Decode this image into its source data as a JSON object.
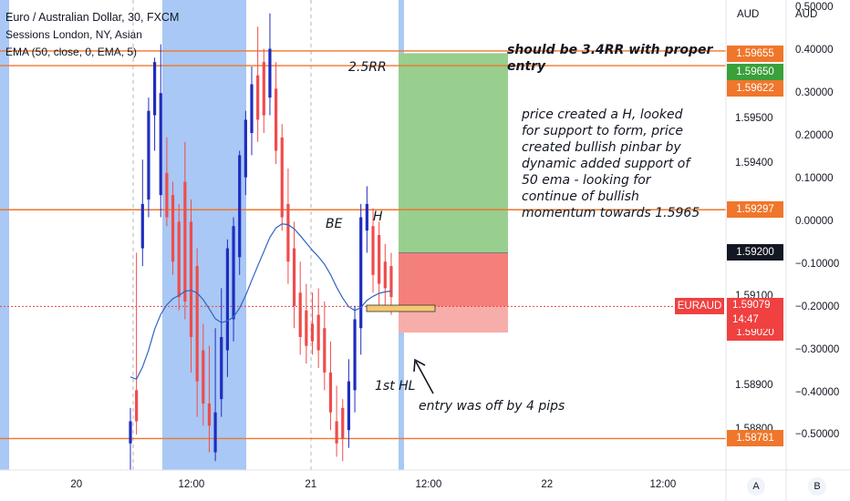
{
  "legend": {
    "title": "Euro / Australian Dollar, 30, FXCM",
    "line2": "Sessions London, NY, Asian",
    "line3": "EMA (50, close, 0, EMA, 5)"
  },
  "annotations": {
    "rr": "2.5RR",
    "be": "BE",
    "h": "H",
    "hl": "1st HL",
    "entry_off": "entry was off by 4 pips",
    "should_be": "should be 3.4RR with proper entry",
    "analysis": "price created a H, looked for support to form, price created bullish pinbar by dynamic added support of 50 ema - looking for continue of bullish momentum towards 1.5965"
  },
  "axis": {
    "left_unit": "AUD",
    "right_unit": "AUD",
    "btn_a": "A",
    "btn_b": "B"
  },
  "price_ticks": [
    "1.59600",
    "1.59500",
    "1.59400",
    "1.59100",
    "1.58900",
    "1.58800"
  ],
  "pct_ticks": [
    "0.50000",
    "0.40000",
    "0.30000",
    "0.20000",
    "0.10000",
    "0.00000",
    "−0.10000",
    "−0.20000",
    "−0.30000",
    "−0.40000",
    "−0.50000"
  ],
  "time_ticks": [
    "20",
    "12:00",
    "21",
    "12:00",
    "22",
    "12:00"
  ],
  "price_labels": [
    {
      "text": "1.59655",
      "color": "#f0762b"
    },
    {
      "text": "1.59650",
      "color": "#3aa03a"
    },
    {
      "text": "1.59622",
      "color": "#f0762b"
    },
    {
      "text": "1.59297",
      "color": "#f0762b"
    },
    {
      "text": "1.59200",
      "color": "#131722"
    },
    {
      "text": "1.59020",
      "color": "#f04040"
    },
    {
      "text": "1.58781",
      "color": "#f0762b"
    }
  ],
  "current": {
    "symbol": "EURAUD",
    "price": "1.59079",
    "countdown": "14:47"
  },
  "colors": {
    "up": "#1e2dbf",
    "down": "#ef4c4c",
    "hline": "#f0762b",
    "target_zone": "#98cf8f",
    "stop_zone": "#f4807a",
    "stop_zone_light": "#f7aeaa",
    "session": "#a9c8f5",
    "ema": "#2f64c0",
    "entry_box": "#f5c872"
  },
  "chart_data": {
    "type": "candlestick",
    "y_range": [
      1.5871,
      1.5977
    ],
    "pct_range": [
      -0.58,
      0.52
    ],
    "x_ticks": [
      "20",
      "12:00",
      "21",
      "12:00",
      "22",
      "12:00"
    ],
    "levels": [
      1.59655,
      1.59622,
      1.59297,
      1.58781
    ],
    "position": {
      "entry": 1.592,
      "target": 1.5965,
      "stop": 1.5902,
      "ratio": "2.5RR"
    },
    "current_price": 1.59079,
    "candles": [
      [
        1.5885,
        1.5882,
        1.5877,
        1.5871
      ],
      [
        1.592,
        1.5889,
        1.5882,
        1.5879
      ],
      [
        1.5941,
        1.5931,
        1.5921,
        1.5917
      ],
      [
        1.5955,
        1.5952,
        1.5932,
        1.5928
      ],
      [
        1.5964,
        1.5963,
        1.5951,
        1.5943
      ],
      [
        1.5967,
        1.5956,
        1.5933,
        1.5928
      ],
      [
        1.5946,
        1.5938,
        1.5928,
        1.5926
      ],
      [
        1.5936,
        1.5933,
        1.5918,
        1.5915
      ],
      [
        1.5931,
        1.5927,
        1.591,
        1.5907
      ],
      [
        1.5945,
        1.5936,
        1.5909,
        1.5905
      ],
      [
        1.5932,
        1.5927,
        1.5901,
        1.5893
      ],
      [
        1.5921,
        1.5917,
        1.5891,
        1.5883
      ],
      [
        1.5904,
        1.5898,
        1.5886,
        1.5881
      ],
      [
        1.5899,
        1.5886,
        1.5881,
        1.5875
      ],
      [
        1.5903,
        1.5884,
        1.5875,
        1.5873
      ],
      [
        1.5912,
        1.5901,
        1.5887,
        1.5883
      ],
      [
        1.5923,
        1.5921,
        1.5898,
        1.5892
      ],
      [
        1.5928,
        1.5926,
        1.5905,
        1.59
      ],
      [
        1.5943,
        1.5942,
        1.5919,
        1.5915
      ],
      [
        1.5952,
        1.595,
        1.5937,
        1.5933
      ],
      [
        1.5962,
        1.5958,
        1.5947,
        1.5942
      ],
      [
        1.5971,
        1.596,
        1.595,
        1.5945
      ],
      [
        1.5966,
        1.5963,
        1.5951,
        1.5947
      ],
      [
        1.5974,
        1.5966,
        1.5955,
        1.5951
      ],
      [
        1.5963,
        1.5957,
        1.5943,
        1.594
      ],
      [
        1.5949,
        1.5946,
        1.5928,
        1.5925
      ],
      [
        1.5939,
        1.5931,
        1.5918,
        1.5913
      ],
      [
        1.5927,
        1.5921,
        1.5908,
        1.5903
      ],
      [
        1.5918,
        1.5911,
        1.5901,
        1.5897
      ],
      [
        1.5913,
        1.5907,
        1.5899,
        1.5895
      ],
      [
        1.5911,
        1.5904,
        1.59,
        1.5897
      ],
      [
        1.5912,
        1.5906,
        1.5898,
        1.5894
      ],
      [
        1.5909,
        1.5903,
        1.5893,
        1.5889
      ],
      [
        1.59,
        1.5893,
        1.5884,
        1.588
      ],
      [
        1.589,
        1.5882,
        1.5877,
        1.5874
      ],
      [
        1.5887,
        1.5885,
        1.5878,
        1.5873
      ],
      [
        1.5896,
        1.5891,
        1.588,
        1.5876
      ],
      [
        1.5908,
        1.5905,
        1.5889,
        1.5884
      ],
      [
        1.5931,
        1.5928,
        1.5903,
        1.5897
      ],
      [
        1.5935,
        1.5931,
        1.5925,
        1.592
      ],
      [
        1.593,
        1.5926,
        1.5915,
        1.5911
      ],
      [
        1.5927,
        1.5924,
        1.5913,
        1.5908
      ],
      [
        1.5922,
        1.5918,
        1.5912,
        1.5907
      ],
      [
        1.592,
        1.5917,
        1.591,
        1.5906
      ]
    ]
  }
}
